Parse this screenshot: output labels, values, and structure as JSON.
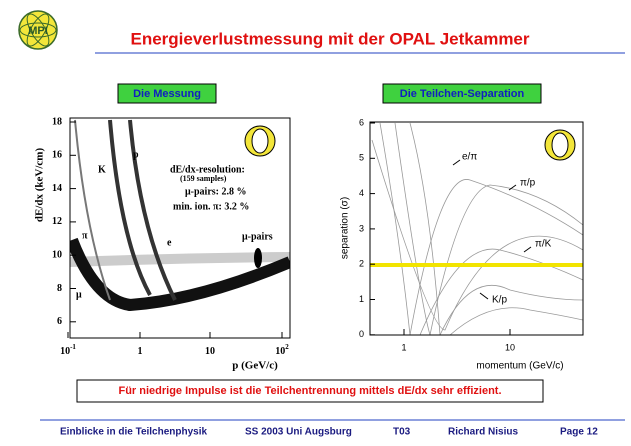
{
  "header": {
    "logo": "MPI",
    "title": "Energieverlustmessung mit der OPAL Jetkammer"
  },
  "left": {
    "heading": "Die Messung",
    "yticks": [
      "18",
      "16",
      "14",
      "12",
      "10",
      "8",
      "6"
    ],
    "xticks": [
      {
        "base": "10",
        "exp": "-1"
      },
      {
        "base": "1"
      },
      {
        "base": "10"
      },
      {
        "base": "10",
        "exp": "2"
      }
    ],
    "ylabel": "dE/dx (keV/cm)",
    "xlabel": "p (GeV/c)",
    "annotations": {
      "p": "p",
      "K": "K",
      "res": "dE/dx-resolution:",
      "samples": "(159 samples)",
      "mupairs_res": "μ-pairs:  2.8 %",
      "minion": "min. ion. π:  3.2 %",
      "pi": "π",
      "e": "e",
      "mupairs": "μ-pairs",
      "mu": "μ"
    }
  },
  "right": {
    "heading": "Die Teilchen-Separation",
    "yticks": [
      "6",
      "5",
      "4",
      "3",
      "2",
      "1",
      "0"
    ],
    "xticks": [
      "1",
      "10"
    ],
    "ylabel": "separation (σ)",
    "xlabel": "momentum (GeV/c)",
    "annotations": {
      "epi": "e/π",
      "pip": "π/p",
      "pik": "π/K",
      "kp": "K/p"
    }
  },
  "conclusion": "Für niedrige Impulse ist die Teilchentrennung mittels dE/dx sehr effizient.",
  "footer": [
    "Einblicke in die Teilchenphysik",
    "SS 2003 Uni Augsburg",
    "T03",
    "Richard Nisius",
    "Page 12"
  ]
}
